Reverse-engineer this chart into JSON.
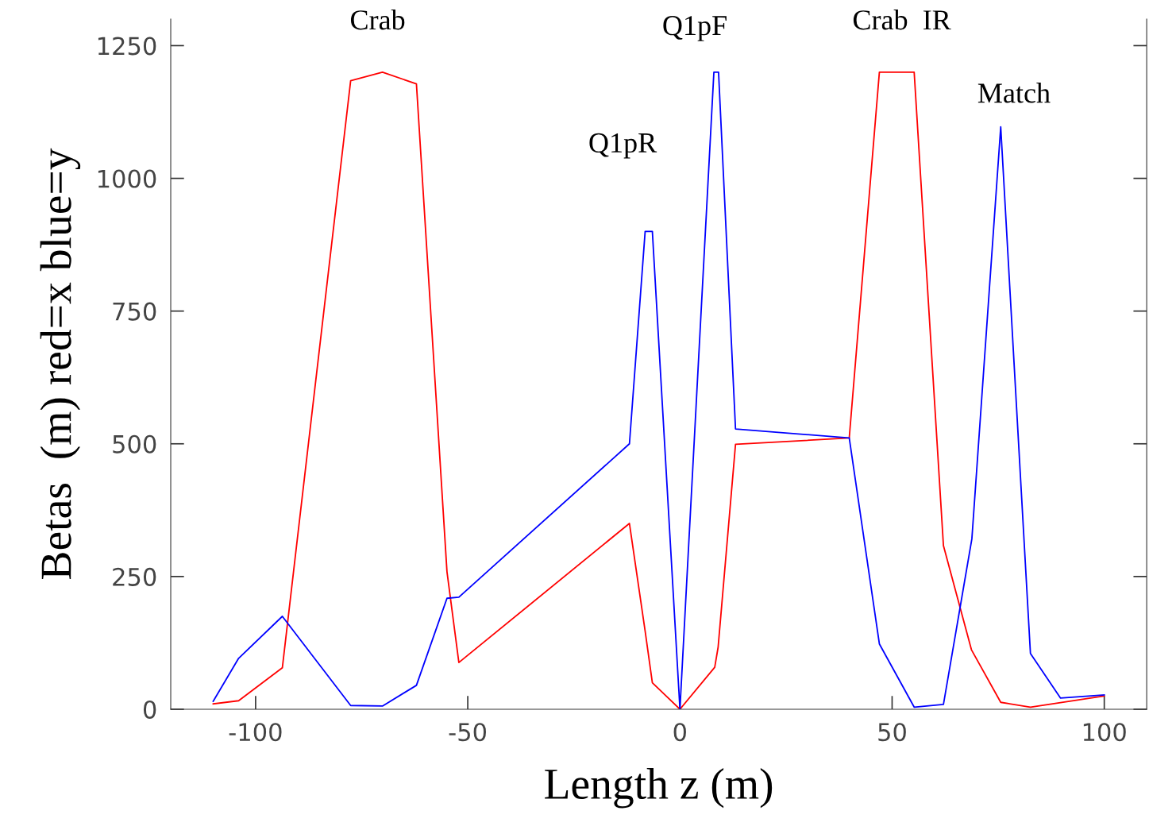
{
  "chart_data": {
    "type": "line",
    "xlabel": "Length z (m)",
    "ylabel": "Betas  (m) red=x blue=y",
    "series": [
      {
        "color": "#ff0000",
        "x": [
          -110,
          -104,
          -93.7,
          -77.6,
          -70.1,
          -62.1,
          -54.9,
          -52.1,
          -11.9,
          -8.2,
          -6.5,
          0,
          8.2,
          9.0,
          13.1,
          39.9,
          47.0,
          55.2,
          62.1,
          68.7,
          75.6,
          82.6,
          100
        ],
        "values": [
          10,
          16,
          78,
          1184,
          1200,
          1178,
          259,
          88,
          350,
          147,
          50,
          0,
          79,
          117,
          499,
          511,
          1200,
          1200,
          308,
          112,
          13,
          4,
          25
        ]
      },
      {
        "color": "#0000ff",
        "x": [
          -110,
          -104,
          -93.7,
          -77.6,
          -70.1,
          -62.1,
          -54.9,
          -52.1,
          -11.9,
          -8.2,
          -6.5,
          0,
          8.0,
          9.1,
          13.1,
          39.9,
          47.0,
          55.2,
          62.1,
          68.8,
          75.6,
          82.6,
          89.7,
          100
        ],
        "values": [
          15,
          96,
          175,
          7,
          6,
          45,
          209,
          211,
          500,
          900,
          900,
          0,
          1200,
          1200,
          528,
          511,
          123,
          4,
          9,
          321,
          1097,
          105,
          21,
          27
        ]
      }
    ],
    "annotations": [
      "Crab",
      "Q1pR",
      "Q1pF",
      "Crab  IR",
      "Match"
    ],
    "xlim": [
      -120,
      110
    ],
    "ylim": [
      0,
      1300
    ],
    "xticks": [
      -100,
      -50,
      0,
      50,
      100
    ],
    "yticks": [
      0,
      250,
      500,
      750,
      1000,
      1250
    ],
    "grid": false,
    "legend": false,
    "marker": "none",
    "line_style": "solid"
  }
}
